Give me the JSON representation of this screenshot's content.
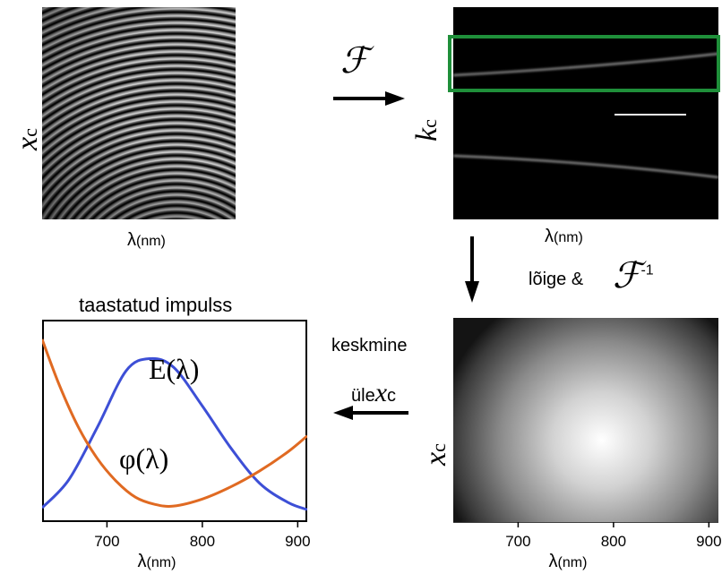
{
  "labels": {
    "xc": "x",
    "xc_sub": "c",
    "kc": "k",
    "kc_sub": "c",
    "lambda_nm": "λ",
    "lambda_unit": "(nm)",
    "fourier_symbol": "ℱ",
    "cut_label": "lõige &",
    "inverse_exp": "-1",
    "average_line1": "keskmine",
    "average_line2": "üle",
    "plot_title": "taastatud impulss",
    "e_label": "E(λ)",
    "phi_label": "φ(λ)"
  },
  "colors": {
    "highlight_box": "#1f8f3a",
    "e_curve": "#3d4fd6",
    "phi_curve": "#e06a22"
  },
  "chart_data": {
    "type": "line",
    "title": "taastatud impulss",
    "xlabel": "λ(nm)",
    "ylabel": "",
    "x_ticks": [
      700,
      800,
      900
    ],
    "xlim": [
      632,
      910
    ],
    "ylim": [
      0,
      1
    ],
    "series": [
      {
        "name": "E(λ)",
        "x": [
          632,
          660,
          690,
          720,
          745,
          770,
          800,
          830,
          860,
          890,
          910
        ],
        "y": [
          0.02,
          0.18,
          0.48,
          0.8,
          0.87,
          0.82,
          0.6,
          0.36,
          0.16,
          0.05,
          0.01
        ]
      },
      {
        "name": "φ(λ)",
        "x": [
          632,
          650,
          670,
          690,
          710,
          730,
          750,
          770,
          800,
          830,
          860,
          890,
          910
        ],
        "y": [
          0.98,
          0.72,
          0.48,
          0.3,
          0.17,
          0.08,
          0.04,
          0.03,
          0.07,
          0.14,
          0.23,
          0.34,
          0.43
        ]
      }
    ]
  }
}
